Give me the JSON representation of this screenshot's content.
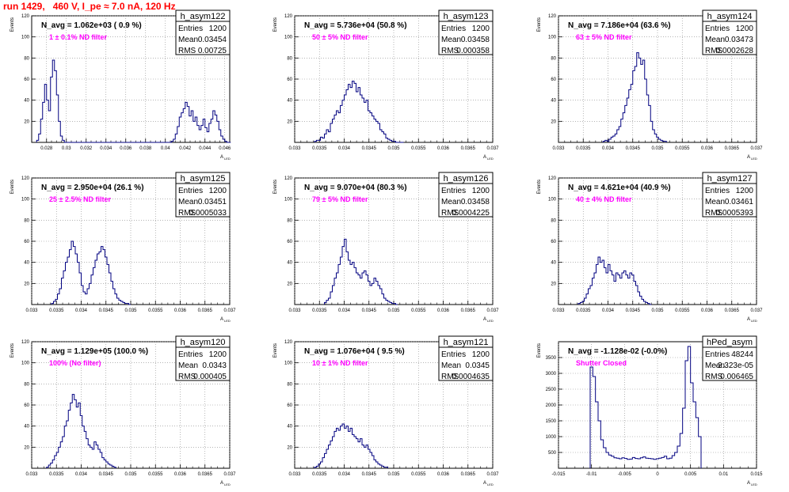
{
  "header": {
    "title": "run 1429,   460 V, I_pe ≈ 7.0 nA, 120 Hz"
  },
  "colors": {
    "title": "#ff0000",
    "histogram_line": "#000080",
    "filter_label": "#ff00ff",
    "grid": "#888888"
  },
  "chart_data": [
    {
      "type": "histogram",
      "name": "h_asym122",
      "nav_label": "N_avg = 1.062e+03 ( 0.9 %)",
      "filter_label": "1 ± 0.1% ND filter",
      "stats": [
        [
          "Entries",
          "1200"
        ],
        [
          "Mean",
          "0.03454"
        ],
        [
          "RMS",
          "0.00725"
        ]
      ],
      "xlabel": "A",
      "xlabel_sub": "LED",
      "ylabel": "Events",
      "xlim": [
        0.0265,
        0.0465
      ],
      "ylim": [
        0,
        120
      ],
      "xticks": [
        "0.028",
        "0.03",
        "0.032",
        "0.034",
        "0.036",
        "0.038",
        "0.04",
        "0.042",
        "0.044",
        "0.046"
      ],
      "xtick_values": [
        0.028,
        0.03,
        0.032,
        0.034,
        0.036,
        0.038,
        0.04,
        0.042,
        0.044,
        0.046
      ],
      "yticks": [
        "20",
        "40",
        "60",
        "80",
        "100",
        "120"
      ],
      "ytick_values": [
        20,
        40,
        60,
        80,
        100,
        120
      ],
      "bins": {
        "start": 0.027,
        "width": 0.0002,
        "counts": [
          2,
          8,
          22,
          38,
          55,
          40,
          30,
          62,
          78,
          68,
          45,
          20,
          6,
          2,
          0,
          0,
          0,
          0,
          0,
          0,
          0,
          0,
          0,
          0,
          0,
          0,
          0,
          0,
          0,
          0,
          0,
          0,
          0,
          0,
          0,
          0,
          0,
          0,
          0,
          0,
          0,
          0,
          0,
          0,
          0,
          0,
          0,
          0,
          0,
          0,
          0,
          0,
          0,
          0,
          0,
          0,
          0,
          0,
          0,
          0,
          0,
          0,
          0,
          0,
          0,
          0,
          0,
          0,
          1,
          3,
          8,
          15,
          24,
          28,
          32,
          38,
          34,
          25,
          30,
          20,
          24,
          16,
          12,
          16,
          22,
          14,
          10,
          18,
          22,
          30,
          26,
          20,
          12,
          6,
          3,
          1,
          0,
          0
        ]
      }
    },
    {
      "type": "histogram",
      "name": "h_asym123",
      "nav_label": "N_avg = 5.736e+04 (50.8 %)",
      "filter_label": "50 ± 5% ND filter",
      "stats": [
        [
          "Entries",
          "1200"
        ],
        [
          "Mean",
          "0.03458"
        ],
        [
          "RMS",
          "0.000358"
        ]
      ],
      "xlabel": "A",
      "xlabel_sub": "LED",
      "ylabel": "Events",
      "xlim": [
        0.033,
        0.037
      ],
      "ylim": [
        0,
        120
      ],
      "xticks": [
        "0.033",
        "0.0335",
        "0.034",
        "0.0345",
        "0.035",
        "0.0355",
        "0.036",
        "0.0365",
        "0.037"
      ],
      "xtick_values": [
        0.033,
        0.0335,
        0.034,
        0.0345,
        0.035,
        0.0355,
        0.036,
        0.0365,
        0.037
      ],
      "yticks": [
        "20",
        "40",
        "60",
        "80",
        "100",
        "120"
      ],
      "ytick_values": [
        20,
        40,
        60,
        80,
        100,
        120
      ],
      "bins": {
        "start": 0.0334,
        "width": 4e-05,
        "counts": [
          1,
          2,
          2,
          5,
          4,
          8,
          12,
          10,
          18,
          22,
          26,
          30,
          28,
          35,
          40,
          45,
          50,
          55,
          52,
          58,
          56,
          48,
          52,
          45,
          42,
          38,
          40,
          30,
          28,
          25,
          22,
          20,
          18,
          12,
          10,
          8,
          4,
          3,
          2,
          1,
          1,
          0,
          0,
          0,
          0
        ]
      }
    },
    {
      "type": "histogram",
      "name": "h_asym124",
      "nav_label": "N_avg = 7.186e+04 (63.6 %)",
      "filter_label": "63 ± 5% ND filter",
      "stats": [
        [
          "Entries",
          "1200"
        ],
        [
          "Mean",
          "0.03473"
        ],
        [
          "RMS",
          "0.0002628"
        ]
      ],
      "xlabel": "A",
      "xlabel_sub": "LED",
      "ylabel": "Events",
      "xlim": [
        0.033,
        0.037
      ],
      "ylim": [
        0,
        120
      ],
      "xticks": [
        "0.033",
        "0.0335",
        "0.034",
        "0.0345",
        "0.035",
        "0.0355",
        "0.036",
        "0.0365",
        "0.037"
      ],
      "xtick_values": [
        0.033,
        0.0335,
        0.034,
        0.0345,
        0.035,
        0.0355,
        0.036,
        0.0365,
        0.037
      ],
      "yticks": [
        "20",
        "40",
        "60",
        "80",
        "100",
        "120"
      ],
      "ytick_values": [
        20,
        40,
        60,
        80,
        100,
        120
      ],
      "bins": {
        "start": 0.0339,
        "width": 4e-05,
        "counts": [
          1,
          2,
          1,
          3,
          5,
          6,
          8,
          12,
          15,
          22,
          28,
          35,
          42,
          50,
          55,
          68,
          72,
          85,
          80,
          74,
          78,
          60,
          45,
          35,
          20,
          12,
          8,
          5,
          3,
          2,
          1,
          1
        ]
      }
    },
    {
      "type": "histogram",
      "name": "h_asym125",
      "nav_label": "N_avg = 2.950e+04 (26.1 %)",
      "filter_label": "25 ± 2.5% ND filter",
      "stats": [
        [
          "Entries",
          "1200"
        ],
        [
          "Mean",
          "0.03451"
        ],
        [
          "RMS",
          "0.0005033"
        ]
      ],
      "xlabel": "A",
      "xlabel_sub": "LED",
      "ylabel": "Events",
      "xlim": [
        0.033,
        0.037
      ],
      "ylim": [
        0,
        120
      ],
      "xticks": [
        "0.033",
        "0.0335",
        "0.034",
        "0.0345",
        "0.035",
        "0.0355",
        "0.036",
        "0.0365",
        "0.037"
      ],
      "xtick_values": [
        0.033,
        0.0335,
        0.034,
        0.0345,
        0.035,
        0.0355,
        0.036,
        0.0365,
        0.037
      ],
      "yticks": [
        "20",
        "40",
        "60",
        "80",
        "100",
        "120"
      ],
      "ytick_values": [
        20,
        40,
        60,
        80,
        100,
        120
      ],
      "bins": {
        "start": 0.0334,
        "width": 4e-05,
        "counts": [
          1,
          3,
          5,
          10,
          15,
          25,
          32,
          40,
          45,
          52,
          60,
          55,
          48,
          40,
          30,
          18,
          12,
          10,
          15,
          20,
          28,
          35,
          42,
          48,
          50,
          55,
          52,
          45,
          38,
          30,
          22,
          15,
          10,
          6,
          4,
          3,
          2,
          1,
          1,
          0
        ]
      }
    },
    {
      "type": "histogram",
      "name": "h_asym126",
      "nav_label": "N_avg = 9.070e+04 (80.3 %)",
      "filter_label": "79 ± 5% ND filter",
      "stats": [
        [
          "Entries",
          "1200"
        ],
        [
          "Mean",
          "0.03458"
        ],
        [
          "RMS",
          "0.0004225"
        ]
      ],
      "xlabel": "A",
      "xlabel_sub": "LED",
      "ylabel": "Events",
      "xlim": [
        0.033,
        0.037
      ],
      "ylim": [
        0,
        120
      ],
      "xticks": [
        "0.033",
        "0.0335",
        "0.034",
        "0.0345",
        "0.035",
        "0.0355",
        "0.036",
        "0.0365",
        "0.037"
      ],
      "xtick_values": [
        0.033,
        0.0335,
        0.034,
        0.0345,
        0.035,
        0.0355,
        0.036,
        0.0365,
        0.037
      ],
      "yticks": [
        "20",
        "40",
        "60",
        "80",
        "100",
        "120"
      ],
      "ytick_values": [
        20,
        40,
        60,
        80,
        100,
        120
      ],
      "bins": {
        "start": 0.0336,
        "width": 4e-05,
        "counts": [
          2,
          4,
          6,
          12,
          18,
          25,
          30,
          38,
          45,
          55,
          62,
          50,
          42,
          38,
          40,
          35,
          30,
          28,
          25,
          30,
          32,
          28,
          22,
          18,
          20,
          25,
          22,
          18,
          15,
          10,
          6,
          4,
          3,
          2,
          1,
          1,
          0
        ]
      }
    },
    {
      "type": "histogram",
      "name": "h_asym127",
      "nav_label": "N_avg = 4.621e+04 (40.9 %)",
      "filter_label": "40 ± 4% ND filter",
      "stats": [
        [
          "Entries",
          "1200"
        ],
        [
          "Mean",
          "0.03461"
        ],
        [
          "RMS",
          "0.0005393"
        ]
      ],
      "xlabel": "A",
      "xlabel_sub": "LED",
      "ylabel": "Events",
      "xlim": [
        0.033,
        0.037
      ],
      "ylim": [
        0,
        120
      ],
      "xticks": [
        "0.033",
        "0.0335",
        "0.034",
        "0.0345",
        "0.035",
        "0.0355",
        "0.036",
        "0.0365",
        "0.037"
      ],
      "xtick_values": [
        0.033,
        0.0335,
        0.034,
        0.0345,
        0.035,
        0.0355,
        0.036,
        0.0365,
        0.037
      ],
      "yticks": [
        "20",
        "40",
        "60",
        "80",
        "100",
        "120"
      ],
      "ytick_values": [
        20,
        40,
        60,
        80,
        100,
        120
      ],
      "bins": {
        "start": 0.0334,
        "width": 4e-05,
        "counts": [
          1,
          2,
          3,
          6,
          10,
          15,
          18,
          25,
          30,
          38,
          45,
          40,
          42,
          35,
          30,
          38,
          32,
          28,
          22,
          30,
          28,
          25,
          30,
          32,
          28,
          25,
          30,
          28,
          22,
          18,
          12,
          8,
          5,
          3,
          2,
          1,
          0
        ]
      }
    },
    {
      "type": "histogram",
      "name": "h_asym120",
      "nav_label": "N_avg = 1.129e+05 (100.0 %)",
      "filter_label": "100% (No filter)",
      "stats": [
        [
          "Entries",
          "1200"
        ],
        [
          "Mean",
          "0.0343"
        ],
        [
          "RMS",
          "0.000405"
        ]
      ],
      "xlabel": "A",
      "xlabel_sub": "LED",
      "ylabel": "Events",
      "xlim": [
        0.033,
        0.037
      ],
      "ylim": [
        0,
        120
      ],
      "xticks": [
        "0.033",
        "0.0335",
        "0.034",
        "0.0345",
        "0.035",
        "0.0355",
        "0.036",
        "0.0365",
        "0.037"
      ],
      "xtick_values": [
        0.033,
        0.0335,
        0.034,
        0.0345,
        0.035,
        0.0355,
        0.036,
        0.0365,
        0.037
      ],
      "yticks": [
        "20",
        "40",
        "60",
        "80",
        "100",
        "120"
      ],
      "ytick_values": [
        20,
        40,
        60,
        80,
        100,
        120
      ],
      "bins": {
        "start": 0.0333,
        "width": 4e-05,
        "counts": [
          1,
          3,
          5,
          8,
          12,
          15,
          20,
          25,
          30,
          40,
          45,
          55,
          62,
          70,
          65,
          58,
          62,
          50,
          40,
          35,
          28,
          22,
          20,
          18,
          25,
          22,
          18,
          15,
          10,
          8,
          6,
          4,
          3,
          2,
          1
        ]
      }
    },
    {
      "type": "histogram",
      "name": "h_asym121",
      "nav_label": "N_avg = 1.076e+04 ( 9.5 %)",
      "filter_label": "10 ± 1% ND filter",
      "stats": [
        [
          "Entries",
          "1200"
        ],
        [
          "Mean",
          "0.0345"
        ],
        [
          "RMS",
          "0.0004635"
        ]
      ],
      "xlabel": "A",
      "xlabel_sub": "LED",
      "ylabel": "Events",
      "xlim": [
        0.033,
        0.037
      ],
      "ylim": [
        0,
        120
      ],
      "xticks": [
        "0.033",
        "0.0335",
        "0.034",
        "0.0345",
        "0.035",
        "0.0355",
        "0.036",
        "0.0365",
        "0.037"
      ],
      "xtick_values": [
        0.033,
        0.0335,
        0.034,
        0.0345,
        0.035,
        0.0355,
        0.036,
        0.0365,
        0.037
      ],
      "yticks": [
        "20",
        "40",
        "60",
        "80",
        "100",
        "120"
      ],
      "ytick_values": [
        20,
        40,
        60,
        80,
        100,
        120
      ],
      "bins": {
        "start": 0.0334,
        "width": 4e-05,
        "counts": [
          1,
          2,
          4,
          6,
          10,
          14,
          18,
          22,
          26,
          30,
          35,
          38,
          36,
          40,
          42,
          38,
          40,
          35,
          38,
          32,
          30,
          28,
          25,
          28,
          22,
          20,
          22,
          18,
          15,
          12,
          8,
          6,
          4,
          3,
          2,
          1,
          1
        ]
      }
    },
    {
      "type": "histogram",
      "name": "hPed_asym",
      "nav_label": "N_avg = -1.128e-02 (-0.0%)",
      "filter_label": "Shutter Closed",
      "stats": [
        [
          "Entries",
          "48244"
        ],
        [
          "Mean",
          "-2.323e-05"
        ],
        [
          "RMS",
          "0.006465"
        ]
      ],
      "xlabel": "A",
      "xlabel_sub": "LED",
      "ylabel": "Events",
      "xlim": [
        -0.015,
        0.015
      ],
      "ylim": [
        0,
        4000
      ],
      "xticks": [
        "-0.015",
        "-0.01",
        "-0.005",
        "0",
        "0.005",
        "0.01",
        "0.015"
      ],
      "xtick_values": [
        -0.015,
        -0.01,
        -0.005,
        0,
        0.005,
        0.01,
        0.015
      ],
      "yticks": [
        "500",
        "1000",
        "1500",
        "2000",
        "2500",
        "3000",
        "3500"
      ],
      "ytick_values": [
        500,
        1000,
        1500,
        2000,
        2500,
        3000,
        3500
      ],
      "bins": {
        "start": -0.0102,
        "width": 0.0004,
        "counts": [
          3200,
          2900,
          2100,
          1500,
          900,
          650,
          500,
          420,
          380,
          330,
          320,
          300,
          330,
          310,
          280,
          290,
          340,
          310,
          300,
          330,
          360,
          320,
          310,
          300,
          280,
          300,
          320,
          340,
          380,
          300,
          320,
          400,
          500,
          700,
          1100,
          1900,
          3400,
          3850,
          2700,
          2100,
          1600,
          1000
        ]
      }
    }
  ]
}
